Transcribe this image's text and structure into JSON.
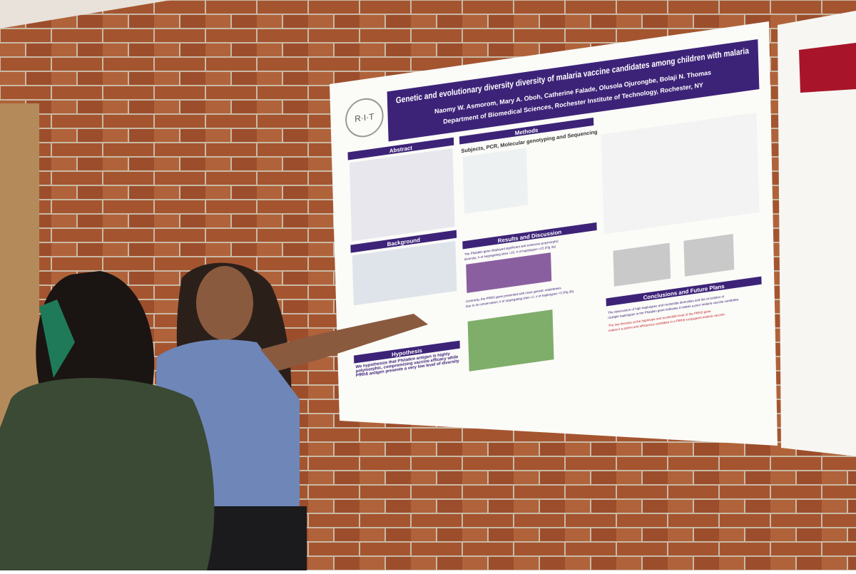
{
  "poster": {
    "logo": "R·I·T",
    "title": "Genetic and evolutionary diversity diversity of malaria vaccine candidates among children with malaria",
    "authors": "Naomy W. Asmorom, Mary A. Oboh, Catherine Falade, Olusola Ojurongbe, Bolaji N. Thomas",
    "affiliation": "Department of Biomedical Sciences, Rochester Institute of Technology, Rochester, NY",
    "sections": {
      "abstract": "Abstract",
      "background": "Background",
      "hypothesis": "Hypothesis",
      "methods": "Methods",
      "results": "Results and Discussion",
      "conclusions": "Conclusions and Future Plans"
    },
    "methods_subtitle": "Subjects, PCR, Molecular genotyping and Sequencing",
    "hypothesis_text": "We hypothesize that Pfstalkin antigen is highly polymorphic, compromising vaccine efficacy while PfRh5 antigen presents a very low level of diversity",
    "results_lines": [
      "The Pfstalkin gene displayed significant and extensive polymorphic",
      "diversity; # of segregating sites =15; # of haplotypes =15 (Fig 3a)",
      "Contrarily, the PfRh5 gene presented with close genetic relatedness",
      "due to its conservation; # of segregating sites =2, # of haplotypes =3 (Fig 3b)"
    ],
    "conclusions_lines": [
      "The observance of high haplotypes and nucleotide diversities and the circulation of",
      "multiple haplotypes in the Pfstalkin gene indicates it makes a poor malaria vaccine candidate.",
      "The low diversity at the haplotype and nucleotide level of the PfRh5 gene",
      "makes it a potent and efficacious candidate in a PfRh5-conjugated malaria vaccine."
    ]
  }
}
